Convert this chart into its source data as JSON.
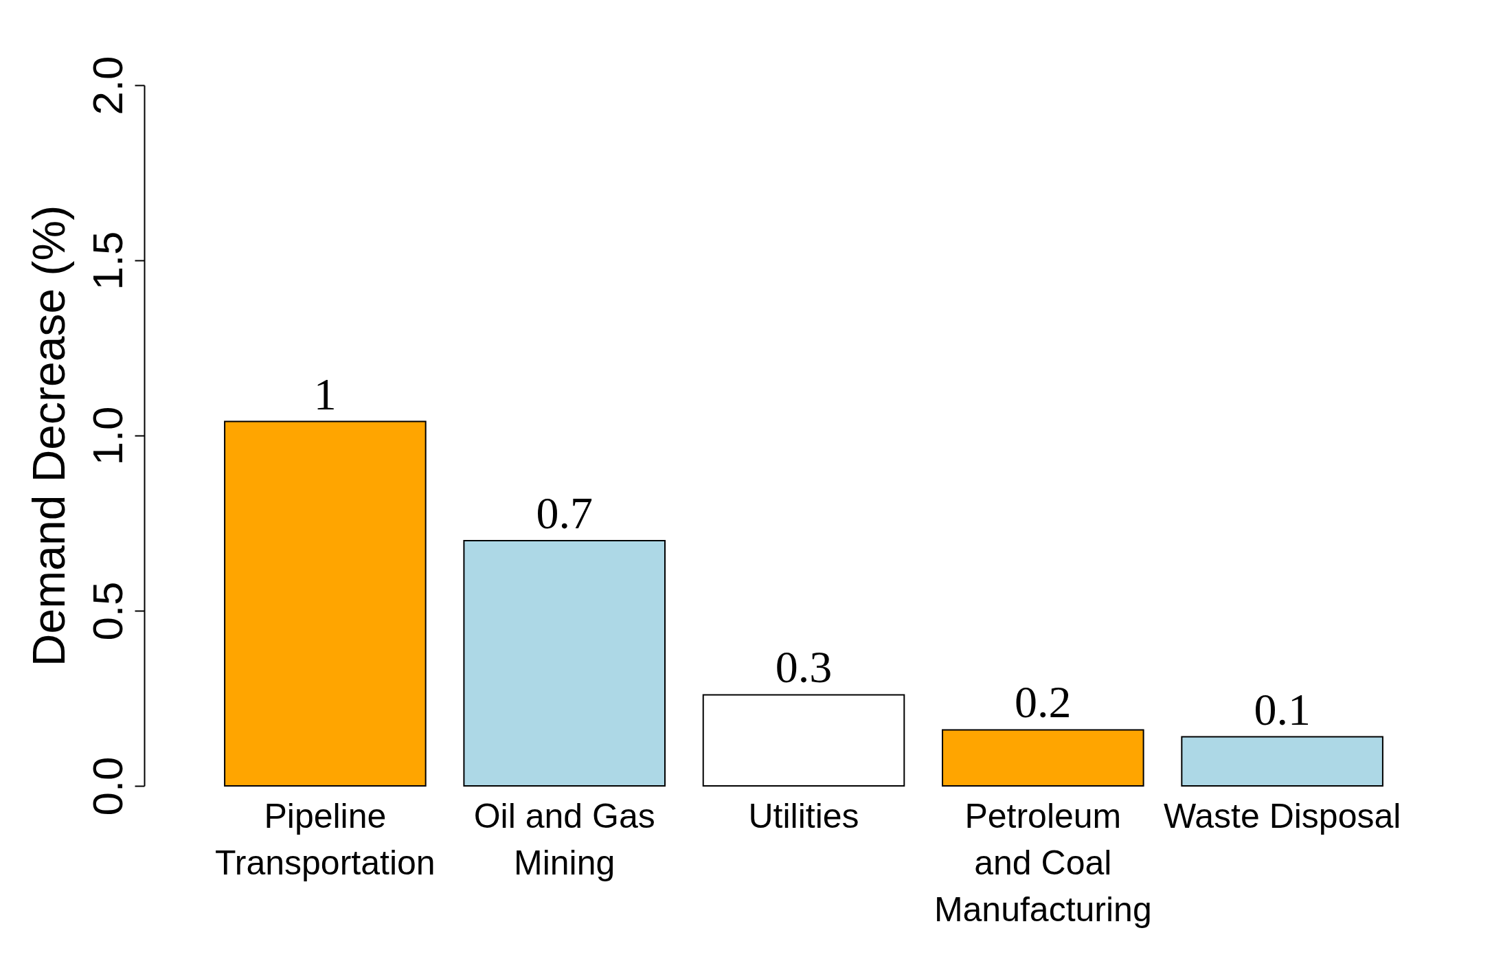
{
  "chart_data": {
    "type": "bar",
    "ylabel": "Demand Decrease (%)",
    "categories": [
      "Pipeline\nTransportation",
      "Oil and Gas\nMining",
      "Utilities",
      "Petroleum\nand Coal\nManufacturing",
      "Waste Disposal"
    ],
    "values": [
      1.04,
      0.7,
      0.26,
      0.16,
      0.14
    ],
    "value_labels": [
      "1",
      "0.7",
      "0.3",
      "0.2",
      "0.1"
    ],
    "colors": [
      "#ffa500",
      "#add8e6",
      "#ffffff",
      "#ffa500",
      "#add8e6"
    ],
    "ylim": [
      0,
      2
    ],
    "yticks": [
      {
        "value": 0,
        "label": "0.0"
      },
      {
        "value": 0.5,
        "label": "0.5"
      },
      {
        "value": 1,
        "label": "1.0"
      },
      {
        "value": 1.5,
        "label": "1.5"
      },
      {
        "value": 2,
        "label": "2.0"
      }
    ],
    "grid": false
  }
}
